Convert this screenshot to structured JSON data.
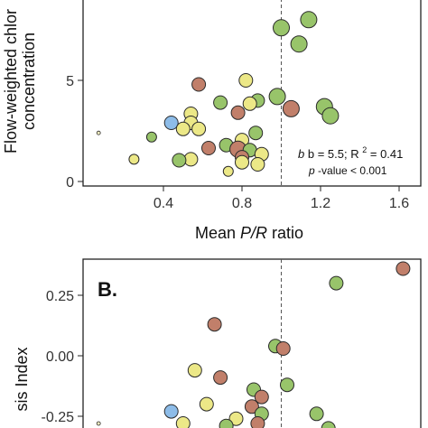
{
  "colors": {
    "green": "#98c46a",
    "brown": "#c17f6a",
    "yellow": "#ece887",
    "blue": "#8dbce8",
    "hollow": "#f2edc0",
    "stroke": "#2a2a2a",
    "frame": "#222222",
    "refline": "#555555"
  },
  "chart_data": [
    {
      "panel": "A",
      "type": "scatter",
      "title": "",
      "ylabel_lines": [
        "Flow-weighted chlor",
        "concentration"
      ],
      "xlabel": {
        "prefix": "Mean ",
        "italic": "P/R",
        "suffix": " ratio"
      },
      "x_ticks": [
        0.4,
        0.8,
        1.2,
        1.6
      ],
      "x_tick_labels": [
        "0.4",
        "0.8",
        "1.2",
        "1.6"
      ],
      "y_ticks": [
        0,
        5
      ],
      "y_tick_labels": [
        "0",
        "5"
      ],
      "xlim": [
        0.0,
        1.7
      ],
      "ylim": [
        -0.25,
        9.0
      ],
      "ref_line_x": 1.0,
      "grid": false,
      "annotation": {
        "b_text": "b = 5.5; R",
        "sup": "2",
        "b_rest": " = 0.41",
        "p_italic": "p",
        "p_rest": "-value < 0.001"
      },
      "points": [
        {
          "x": 1.14,
          "y": 8.0,
          "color": "green",
          "size": "l"
        },
        {
          "x": 1.0,
          "y": 7.6,
          "color": "green",
          "size": "l"
        },
        {
          "x": 1.09,
          "y": 6.8,
          "color": "green",
          "size": "l"
        },
        {
          "x": 0.82,
          "y": 5.0,
          "color": "yellow",
          "size": "m"
        },
        {
          "x": 0.58,
          "y": 4.8,
          "color": "brown",
          "size": "m"
        },
        {
          "x": 0.98,
          "y": 4.2,
          "color": "green",
          "size": "l"
        },
        {
          "x": 0.88,
          "y": 4.0,
          "color": "green",
          "size": "m"
        },
        {
          "x": 0.69,
          "y": 3.9,
          "color": "green",
          "size": "m"
        },
        {
          "x": 0.84,
          "y": 3.85,
          "color": "yellow",
          "size": "m"
        },
        {
          "x": 1.22,
          "y": 3.7,
          "color": "green",
          "size": "l"
        },
        {
          "x": 1.05,
          "y": 3.6,
          "color": "brown",
          "size": "l"
        },
        {
          "x": 1.25,
          "y": 3.25,
          "color": "green",
          "size": "l"
        },
        {
          "x": 0.54,
          "y": 3.35,
          "color": "yellow",
          "size": "m"
        },
        {
          "x": 0.78,
          "y": 3.4,
          "color": "brown",
          "size": "m"
        },
        {
          "x": 0.44,
          "y": 2.9,
          "color": "blue",
          "size": "m"
        },
        {
          "x": 0.54,
          "y": 2.9,
          "color": "yellow",
          "size": "m"
        },
        {
          "x": 0.5,
          "y": 2.6,
          "color": "yellow",
          "size": "m"
        },
        {
          "x": 0.58,
          "y": 2.6,
          "color": "yellow",
          "size": "m"
        },
        {
          "x": 0.87,
          "y": 2.4,
          "color": "green",
          "size": "m"
        },
        {
          "x": 0.34,
          "y": 2.2,
          "color": "green",
          "size": "s"
        },
        {
          "x": 0.07,
          "y": 2.4,
          "color": "hollow",
          "size": "xs"
        },
        {
          "x": 0.8,
          "y": 2.05,
          "color": "yellow",
          "size": "m"
        },
        {
          "x": 0.72,
          "y": 1.8,
          "color": "green",
          "size": "m"
        },
        {
          "x": 0.63,
          "y": 1.65,
          "color": "brown",
          "size": "m"
        },
        {
          "x": 0.78,
          "y": 1.6,
          "color": "brown",
          "size": "l"
        },
        {
          "x": 0.84,
          "y": 1.55,
          "color": "green",
          "size": "m"
        },
        {
          "x": 0.9,
          "y": 1.35,
          "color": "yellow",
          "size": "m"
        },
        {
          "x": 0.8,
          "y": 1.2,
          "color": "brown",
          "size": "m"
        },
        {
          "x": 0.54,
          "y": 1.1,
          "color": "yellow",
          "size": "m"
        },
        {
          "x": 0.48,
          "y": 1.05,
          "color": "green",
          "size": "m"
        },
        {
          "x": 0.25,
          "y": 1.1,
          "color": "yellow",
          "size": "s"
        },
        {
          "x": 0.8,
          "y": 0.95,
          "color": "yellow",
          "size": "m"
        },
        {
          "x": 0.88,
          "y": 0.85,
          "color": "yellow",
          "size": "m"
        },
        {
          "x": 0.73,
          "y": 0.5,
          "color": "yellow",
          "size": "s"
        }
      ]
    },
    {
      "panel": "B",
      "type": "scatter",
      "title": "",
      "panel_label": "B.",
      "ylabel": "sis Index",
      "x_ticks": [],
      "y_ticks": [
        0.25,
        0.0,
        -0.25
      ],
      "y_tick_labels": [
        "0.25",
        "0.00",
        "-0.25"
      ],
      "xlim": [
        0.0,
        1.7
      ],
      "ylim": [
        -0.32,
        0.4
      ],
      "ref_line_x": 1.0,
      "grid": false,
      "points": [
        {
          "x": 1.62,
          "y": 0.36,
          "color": "brown",
          "size": "m"
        },
        {
          "x": 1.28,
          "y": 0.3,
          "color": "green",
          "size": "m"
        },
        {
          "x": 0.66,
          "y": 0.13,
          "color": "brown",
          "size": "m"
        },
        {
          "x": 0.97,
          "y": 0.04,
          "color": "green",
          "size": "m"
        },
        {
          "x": 1.01,
          "y": 0.03,
          "color": "brown",
          "size": "m"
        },
        {
          "x": 1.03,
          "y": -0.12,
          "color": "green",
          "size": "m"
        },
        {
          "x": 0.56,
          "y": -0.06,
          "color": "yellow",
          "size": "m"
        },
        {
          "x": 0.69,
          "y": -0.09,
          "color": "brown",
          "size": "m"
        },
        {
          "x": 0.86,
          "y": -0.14,
          "color": "green",
          "size": "m"
        },
        {
          "x": 0.9,
          "y": -0.17,
          "color": "brown",
          "size": "m"
        },
        {
          "x": 0.85,
          "y": -0.21,
          "color": "brown",
          "size": "m"
        },
        {
          "x": 0.62,
          "y": -0.2,
          "color": "yellow",
          "size": "m"
        },
        {
          "x": 0.44,
          "y": -0.23,
          "color": "blue",
          "size": "m"
        },
        {
          "x": 0.77,
          "y": -0.26,
          "color": "yellow",
          "size": "m"
        },
        {
          "x": 1.18,
          "y": -0.24,
          "color": "green",
          "size": "m"
        },
        {
          "x": 0.9,
          "y": -0.24,
          "color": "green",
          "size": "m"
        },
        {
          "x": 0.5,
          "y": -0.28,
          "color": "yellow",
          "size": "m"
        },
        {
          "x": 0.88,
          "y": -0.28,
          "color": "brown",
          "size": "m"
        },
        {
          "x": 0.72,
          "y": -0.29,
          "color": "green",
          "size": "m"
        },
        {
          "x": 1.24,
          "y": -0.3,
          "color": "green",
          "size": "m"
        },
        {
          "x": 0.07,
          "y": -0.28,
          "color": "hollow",
          "size": "xs"
        }
      ]
    }
  ]
}
